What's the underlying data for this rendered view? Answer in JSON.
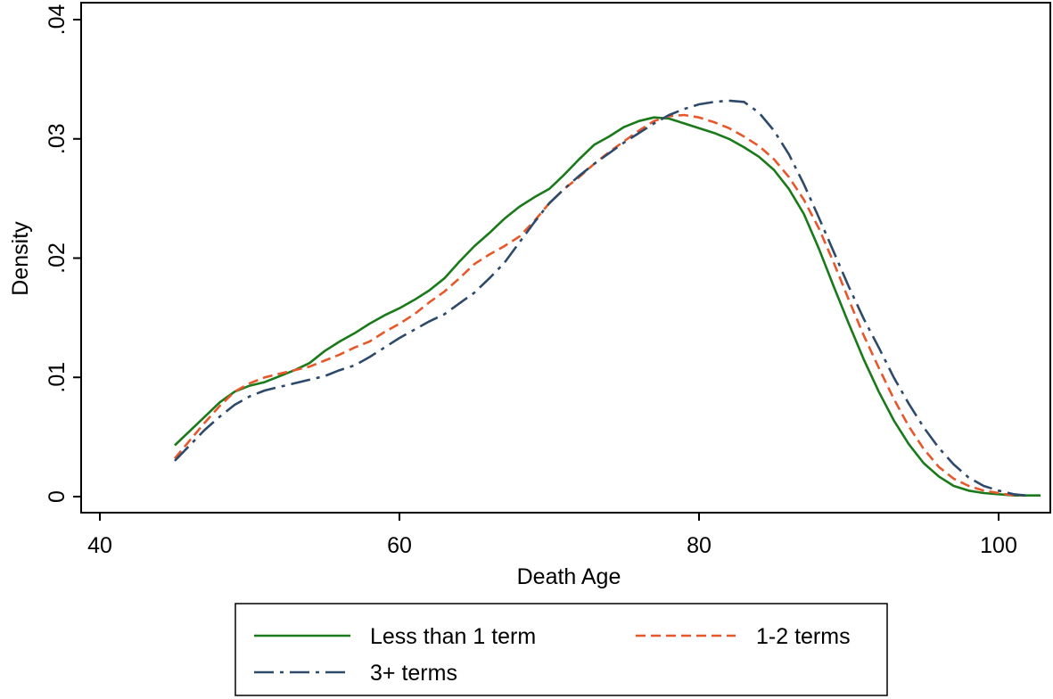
{
  "chart_data": {
    "type": "line",
    "title": "",
    "xlabel": "Death Age",
    "ylabel": "Density",
    "xlim": [
      40,
      103
    ],
    "ylim": [
      0,
      0.04
    ],
    "x_ticks": [
      40,
      60,
      80,
      100
    ],
    "x_tick_labels": [
      "40",
      "60",
      "80",
      "100"
    ],
    "y_ticks": [
      0,
      0.01,
      0.02,
      0.03,
      0.04
    ],
    "y_tick_labels": [
      "0",
      ".01",
      ".02",
      ".03",
      ".04"
    ],
    "grid": false,
    "legend_position": "bottom",
    "series": [
      {
        "name": "Less than 1 term",
        "color": "#1a7a1a",
        "dash": "solid",
        "points": [
          [
            45,
            0.0043
          ],
          [
            46,
            0.0055
          ],
          [
            47,
            0.0067
          ],
          [
            48,
            0.0079
          ],
          [
            49,
            0.0088
          ],
          [
            50,
            0.0093
          ],
          [
            51,
            0.0096
          ],
          [
            52,
            0.0101
          ],
          [
            53,
            0.0106
          ],
          [
            54,
            0.0112
          ],
          [
            55,
            0.0122
          ],
          [
            56,
            0.013
          ],
          [
            57,
            0.0137
          ],
          [
            58,
            0.0145
          ],
          [
            59,
            0.0152
          ],
          [
            60,
            0.0158
          ],
          [
            61,
            0.0165
          ],
          [
            62,
            0.0173
          ],
          [
            63,
            0.0183
          ],
          [
            64,
            0.0197
          ],
          [
            65,
            0.021
          ],
          [
            66,
            0.0221
          ],
          [
            67,
            0.0233
          ],
          [
            68,
            0.0243
          ],
          [
            69,
            0.0251
          ],
          [
            70,
            0.0258
          ],
          [
            71,
            0.027
          ],
          [
            72,
            0.0283
          ],
          [
            73,
            0.0295
          ],
          [
            74,
            0.0302
          ],
          [
            75,
            0.031
          ],
          [
            76,
            0.0315
          ],
          [
            77,
            0.0318
          ],
          [
            78,
            0.0317
          ],
          [
            79,
            0.0313
          ],
          [
            80,
            0.0309
          ],
          [
            81,
            0.0305
          ],
          [
            82,
            0.03
          ],
          [
            83,
            0.0293
          ],
          [
            84,
            0.0285
          ],
          [
            85,
            0.0274
          ],
          [
            86,
            0.0258
          ],
          [
            87,
            0.0237
          ],
          [
            88,
            0.0208
          ],
          [
            89,
            0.0176
          ],
          [
            90,
            0.0145
          ],
          [
            91,
            0.0115
          ],
          [
            92,
            0.0088
          ],
          [
            93,
            0.0064
          ],
          [
            94,
            0.0044
          ],
          [
            95,
            0.0028
          ],
          [
            96,
            0.0017
          ],
          [
            97,
            0.0009
          ],
          [
            98,
            0.0005
          ],
          [
            99,
            0.0003
          ],
          [
            100,
            0.0002
          ],
          [
            101,
            0.0001
          ],
          [
            102,
            0.0001
          ],
          [
            102.8,
            0.0001
          ]
        ]
      },
      {
        "name": "1-2 terms",
        "color": "#e8572a",
        "dash": "dashed",
        "points": [
          [
            45,
            0.0032
          ],
          [
            46,
            0.0047
          ],
          [
            47,
            0.0062
          ],
          [
            48,
            0.0076
          ],
          [
            49,
            0.0088
          ],
          [
            50,
            0.0095
          ],
          [
            51,
            0.01
          ],
          [
            52,
            0.0103
          ],
          [
            53,
            0.0106
          ],
          [
            54,
            0.0109
          ],
          [
            55,
            0.0114
          ],
          [
            56,
            0.0119
          ],
          [
            57,
            0.0125
          ],
          [
            58,
            0.013
          ],
          [
            59,
            0.0138
          ],
          [
            60,
            0.0145
          ],
          [
            61,
            0.0153
          ],
          [
            62,
            0.0163
          ],
          [
            63,
            0.0172
          ],
          [
            64,
            0.0183
          ],
          [
            65,
            0.0195
          ],
          [
            66,
            0.0203
          ],
          [
            67,
            0.021
          ],
          [
            68,
            0.0218
          ],
          [
            69,
            0.0231
          ],
          [
            70,
            0.0246
          ],
          [
            71,
            0.0258
          ],
          [
            72,
            0.0268
          ],
          [
            73,
            0.0279
          ],
          [
            74,
            0.0289
          ],
          [
            75,
            0.0298
          ],
          [
            76,
            0.0307
          ],
          [
            77,
            0.0315
          ],
          [
            78,
            0.0319
          ],
          [
            79,
            0.032
          ],
          [
            80,
            0.0318
          ],
          [
            81,
            0.0314
          ],
          [
            82,
            0.0309
          ],
          [
            83,
            0.0302
          ],
          [
            84,
            0.0294
          ],
          [
            85,
            0.0283
          ],
          [
            86,
            0.0268
          ],
          [
            87,
            0.0249
          ],
          [
            88,
            0.0225
          ],
          [
            89,
            0.0196
          ],
          [
            90,
            0.0165
          ],
          [
            91,
            0.0135
          ],
          [
            92,
            0.0108
          ],
          [
            93,
            0.0082
          ],
          [
            94,
            0.0059
          ],
          [
            95,
            0.004
          ],
          [
            96,
            0.0025
          ],
          [
            97,
            0.0015
          ],
          [
            98,
            0.0009
          ],
          [
            99,
            0.0005
          ],
          [
            100,
            0.0003
          ],
          [
            101,
            0.0001
          ],
          [
            101.5,
            0.0001
          ]
        ]
      },
      {
        "name": "3+ terms",
        "color": "#2e4a6b",
        "dash": "dashdot",
        "points": [
          [
            45,
            0.003
          ],
          [
            46,
            0.0043
          ],
          [
            47,
            0.0056
          ],
          [
            48,
            0.0067
          ],
          [
            49,
            0.0077
          ],
          [
            50,
            0.0084
          ],
          [
            51,
            0.0089
          ],
          [
            52,
            0.0092
          ],
          [
            53,
            0.0095
          ],
          [
            54,
            0.0098
          ],
          [
            55,
            0.0101
          ],
          [
            56,
            0.0106
          ],
          [
            57,
            0.011
          ],
          [
            58,
            0.0117
          ],
          [
            59,
            0.0125
          ],
          [
            60,
            0.0133
          ],
          [
            61,
            0.014
          ],
          [
            62,
            0.0147
          ],
          [
            63,
            0.0153
          ],
          [
            64,
            0.0162
          ],
          [
            65,
            0.0171
          ],
          [
            66,
            0.0183
          ],
          [
            67,
            0.0196
          ],
          [
            68,
            0.0213
          ],
          [
            69,
            0.023
          ],
          [
            70,
            0.0246
          ],
          [
            71,
            0.0258
          ],
          [
            72,
            0.0269
          ],
          [
            73,
            0.0279
          ],
          [
            74,
            0.0288
          ],
          [
            75,
            0.0297
          ],
          [
            76,
            0.0305
          ],
          [
            77,
            0.0313
          ],
          [
            78,
            0.032
          ],
          [
            79,
            0.0325
          ],
          [
            80,
            0.0329
          ],
          [
            81,
            0.0331
          ],
          [
            82,
            0.0332
          ],
          [
            83,
            0.0331
          ],
          [
            84,
            0.0322
          ],
          [
            85,
            0.0307
          ],
          [
            86,
            0.0287
          ],
          [
            87,
            0.0262
          ],
          [
            88,
            0.0234
          ],
          [
            89,
            0.0205
          ],
          [
            90,
            0.0176
          ],
          [
            91,
            0.0149
          ],
          [
            92,
            0.0125
          ],
          [
            93,
            0.01
          ],
          [
            94,
            0.0078
          ],
          [
            95,
            0.0058
          ],
          [
            96,
            0.0041
          ],
          [
            97,
            0.0027
          ],
          [
            98,
            0.0016
          ],
          [
            99,
            0.0009
          ],
          [
            100,
            0.0005
          ],
          [
            101,
            0.0002
          ],
          [
            101.8,
            0.0001
          ]
        ]
      }
    ]
  }
}
